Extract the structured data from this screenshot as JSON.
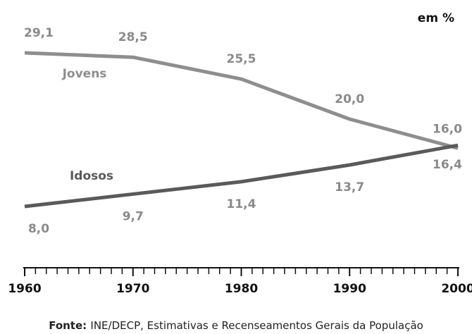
{
  "chart_data": {
    "type": "line",
    "unit_label": "em %",
    "x": [
      1960,
      1970,
      1980,
      1990,
      2000
    ],
    "xlim": [
      1960,
      2000
    ],
    "xticks": [
      1960,
      1970,
      1980,
      1990,
      2000
    ],
    "series": [
      {
        "name": "Jovens",
        "color": "#8e8e8e",
        "values": [
          29.1,
          28.5,
          25.5,
          20.0,
          16.0
        ],
        "value_labels": [
          "29,1",
          "28,5",
          "25,5",
          "20,0",
          "16,0"
        ]
      },
      {
        "name": "Idosos",
        "color": "#5a5a5a",
        "values": [
          8.0,
          9.7,
          11.4,
          13.7,
          16.4
        ],
        "value_labels": [
          "8,0",
          "9,7",
          "11,4",
          "13,7",
          "16,4"
        ]
      }
    ],
    "source_label": "Fonte:",
    "source": "INE/DECP, Estimativas e Recenseamentos Gerais da População"
  }
}
